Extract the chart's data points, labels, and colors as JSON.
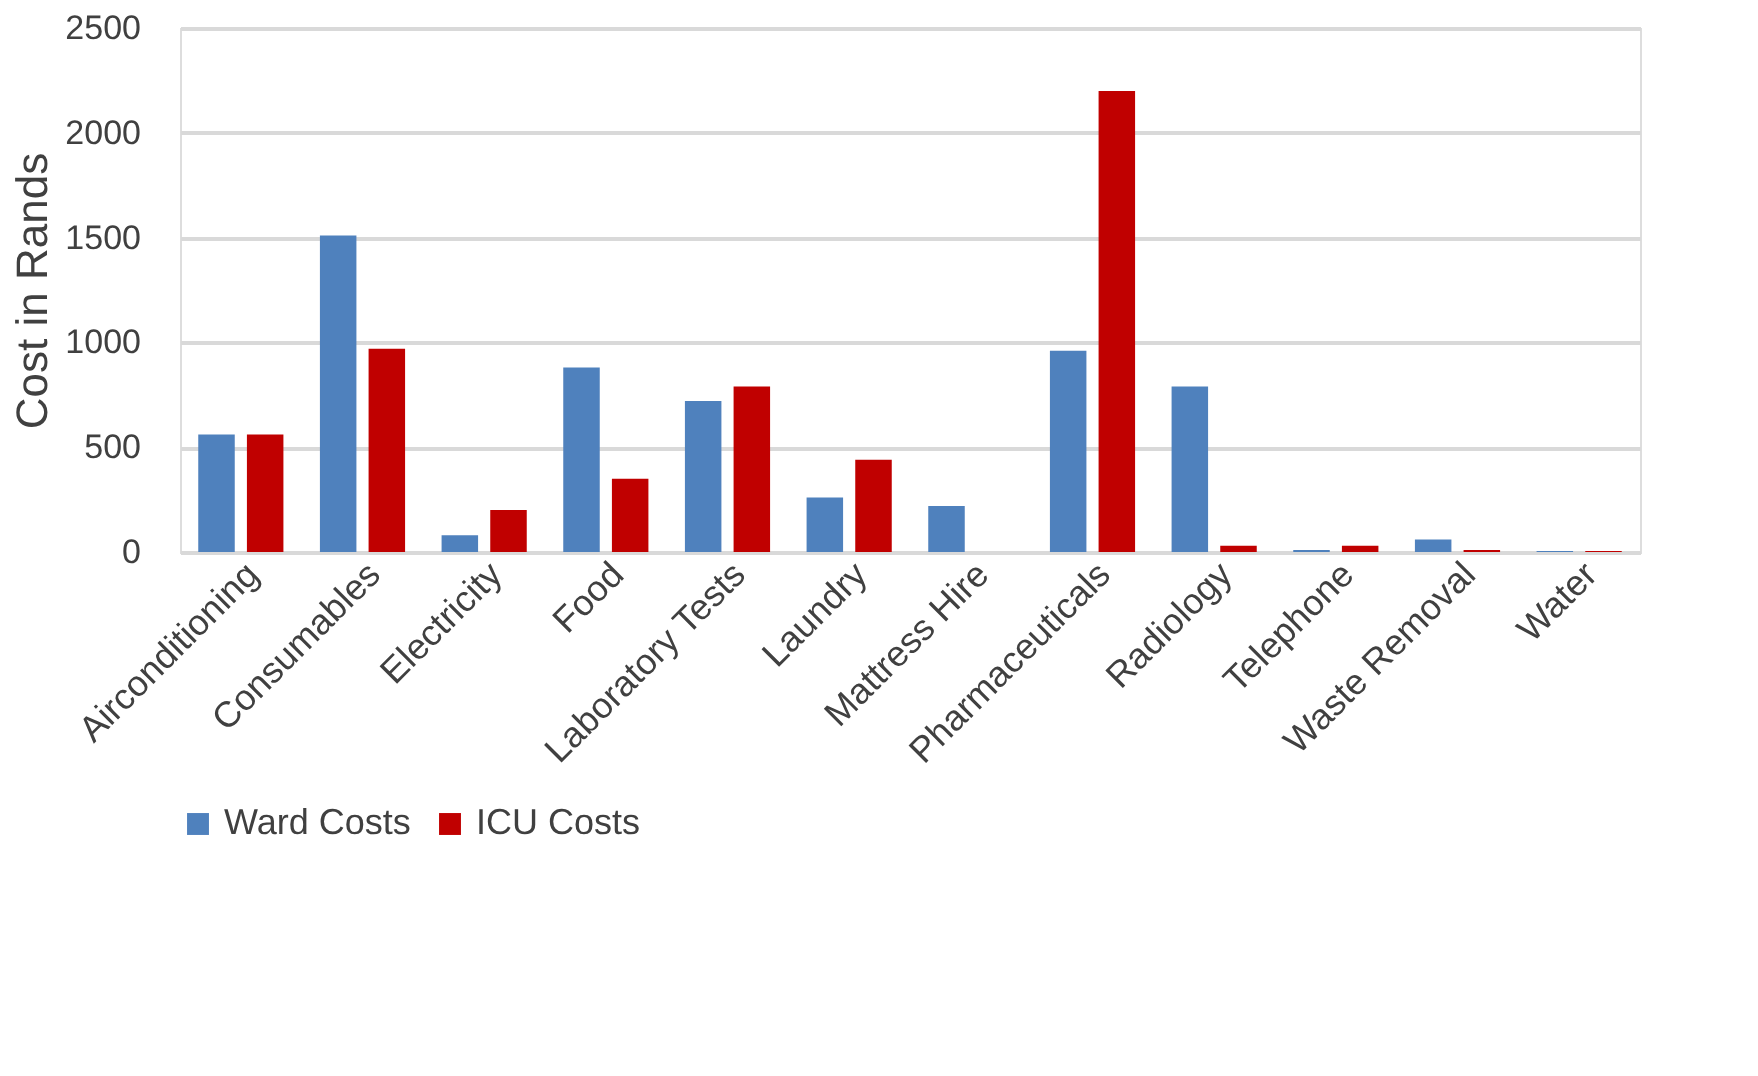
{
  "chart_data": {
    "type": "bar",
    "ylabel": "Cost in Rands",
    "categories": [
      "Airconditioning",
      "Consumables",
      "Electricity",
      "Food",
      "Laboratory Tests",
      "Laundry",
      "Mattress Hire",
      "Pharmaceuticals",
      "Radiology",
      "Telephone",
      "Waste Removal",
      "Water"
    ],
    "series": [
      {
        "name": "Ward Costs",
        "color": "#4f81bd",
        "values": [
          560,
          1510,
          80,
          880,
          720,
          260,
          220,
          960,
          790,
          10,
          60,
          5
        ]
      },
      {
        "name": "ICU Costs",
        "color": "#c00000",
        "values": [
          560,
          970,
          200,
          350,
          790,
          440,
          null,
          2200,
          30,
          30,
          10,
          5
        ]
      }
    ],
    "ylim": [
      0,
      2500
    ],
    "yticks": [
      0,
      500,
      1000,
      1500,
      2000,
      2500
    ],
    "grid": "y",
    "legend": "bottom"
  }
}
